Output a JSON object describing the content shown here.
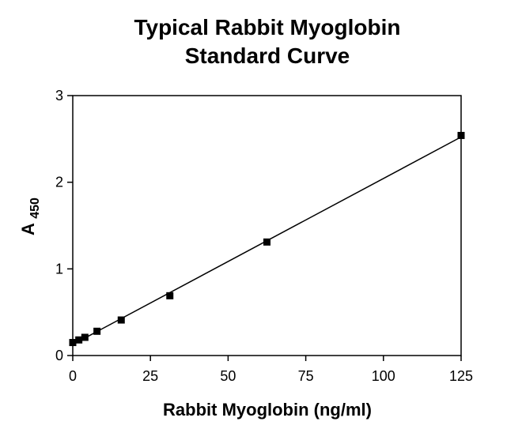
{
  "chart_data": {
    "type": "scatter",
    "title_lines": [
      "Typical Rabbit Myoglobin",
      "Standard Curve"
    ],
    "xlabel": "Rabbit Myoglobin (ng/ml)",
    "ylabel": {
      "main": "A",
      "subscript": "450"
    },
    "xlim": [
      0,
      125
    ],
    "ylim": [
      0,
      3
    ],
    "x_ticks": [
      "0",
      "25",
      "50",
      "75",
      "100",
      "125"
    ],
    "y_ticks": [
      "0",
      "1",
      "2",
      "3"
    ],
    "series": [
      {
        "points": [
          {
            "x": 0,
            "y": 0.15
          },
          {
            "x": 1.95,
            "y": 0.18
          },
          {
            "x": 3.9,
            "y": 0.21
          },
          {
            "x": 7.8,
            "y": 0.28
          },
          {
            "x": 15.6,
            "y": 0.41
          },
          {
            "x": 31.25,
            "y": 0.69
          },
          {
            "x": 62.5,
            "y": 1.31
          },
          {
            "x": 125,
            "y": 2.54
          }
        ],
        "fit_line": {
          "type": "linear",
          "x_range": [
            0,
            125
          ]
        }
      }
    ],
    "grid": false,
    "legend": "none",
    "colors": {
      "marker": "#000000",
      "line": "#000000",
      "axes": "#000000"
    }
  }
}
